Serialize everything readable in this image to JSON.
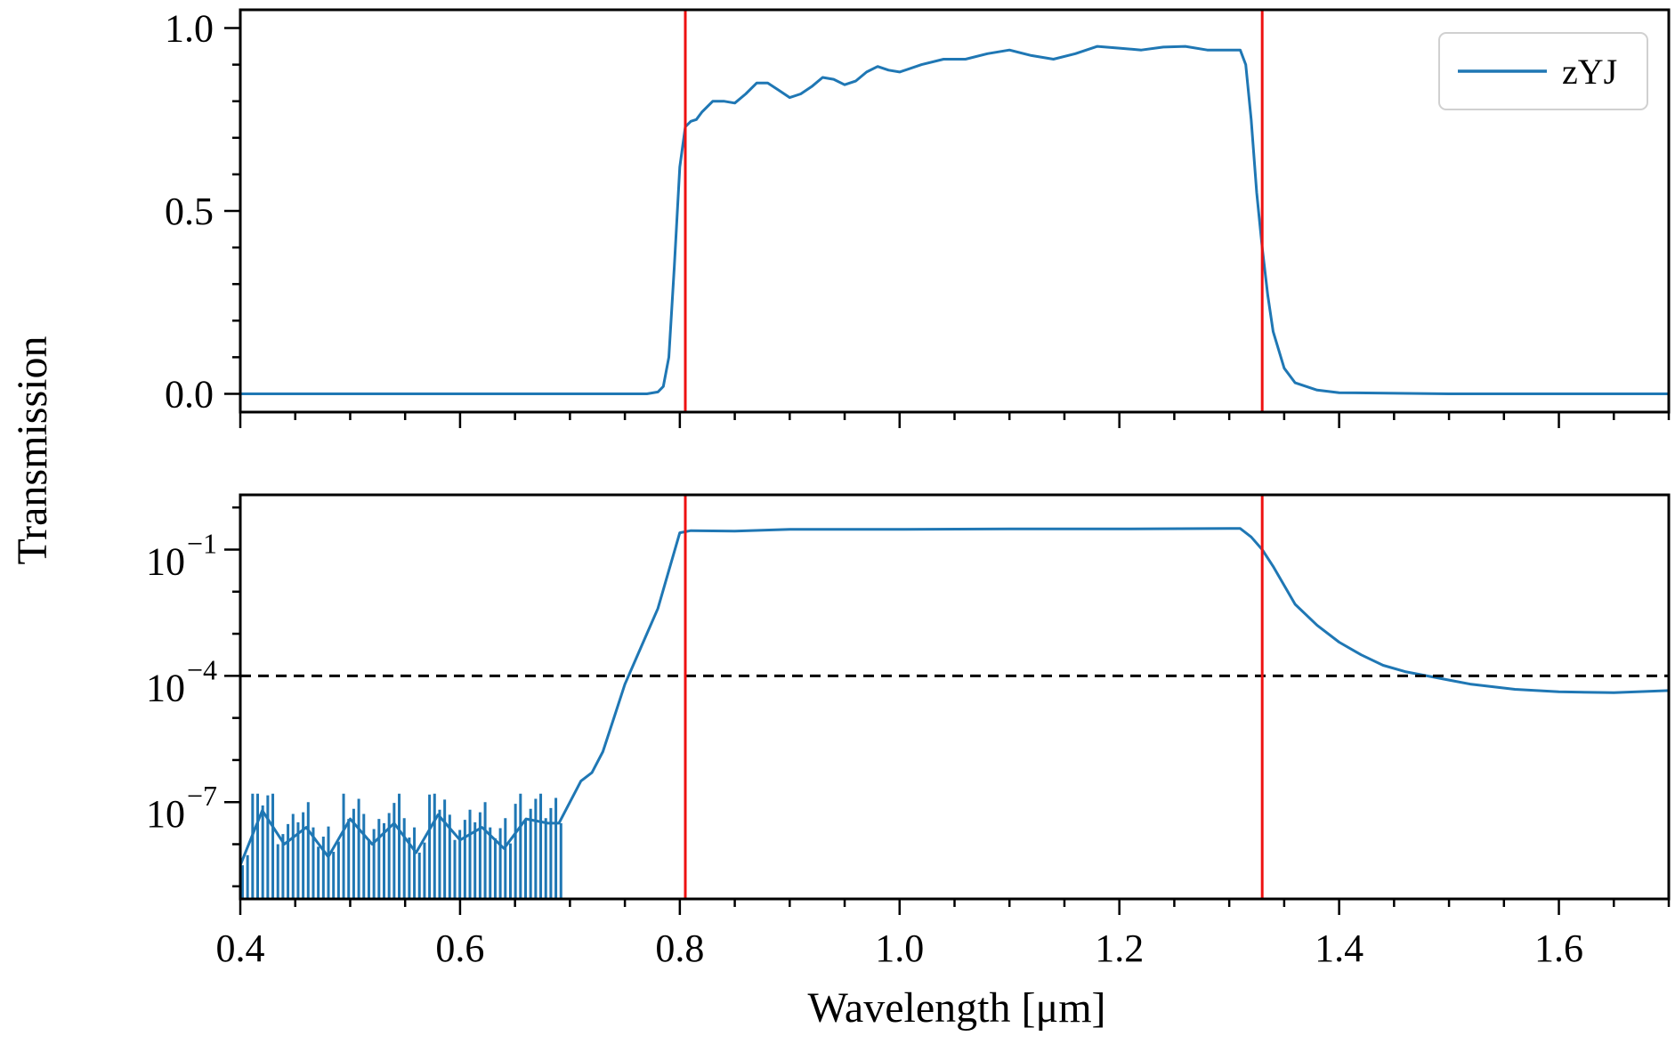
{
  "chart_data": {
    "type": "line",
    "ylabel": "Transmission",
    "xlabel": "Wavelength [μm]",
    "xlim": [
      0.4,
      1.7
    ],
    "xticks": [
      0.4,
      0.6,
      0.8,
      1.0,
      1.2,
      1.4,
      1.6
    ],
    "xtick_labels": [
      "0.4",
      "0.6",
      "0.8",
      "1.0",
      "1.2",
      "1.4",
      "1.6"
    ],
    "vertical_lines": [
      0.805,
      1.33
    ],
    "colors": {
      "series": "#1f77b4",
      "vlines": "#ee1111",
      "threshold": "#000000"
    },
    "legend": {
      "label": "zYJ",
      "location": "top-right"
    },
    "panels": [
      {
        "name": "linear",
        "yscale": "linear",
        "ylim": [
          -0.05,
          1.05
        ],
        "yticks": [
          0.0,
          0.5,
          1.0
        ],
        "ytick_labels": [
          "0.0",
          "0.5",
          "1.0"
        ],
        "series": [
          {
            "name": "zYJ",
            "x": [
              0.4,
              0.7,
              0.77,
              0.78,
              0.785,
              0.79,
              0.795,
              0.8,
              0.805,
              0.81,
              0.815,
              0.82,
              0.83,
              0.84,
              0.85,
              0.86,
              0.87,
              0.88,
              0.89,
              0.9,
              0.91,
              0.92,
              0.93,
              0.94,
              0.95,
              0.96,
              0.97,
              0.98,
              0.99,
              1.0,
              1.02,
              1.04,
              1.06,
              1.08,
              1.1,
              1.12,
              1.14,
              1.16,
              1.18,
              1.2,
              1.22,
              1.24,
              1.26,
              1.28,
              1.3,
              1.31,
              1.315,
              1.32,
              1.325,
              1.33,
              1.335,
              1.34,
              1.35,
              1.36,
              1.38,
              1.4,
              1.5,
              1.7
            ],
            "y": [
              0.0,
              0.0,
              0.0,
              0.005,
              0.02,
              0.1,
              0.35,
              0.62,
              0.73,
              0.745,
              0.75,
              0.77,
              0.8,
              0.8,
              0.795,
              0.82,
              0.85,
              0.85,
              0.83,
              0.81,
              0.82,
              0.84,
              0.865,
              0.86,
              0.845,
              0.855,
              0.88,
              0.895,
              0.885,
              0.88,
              0.9,
              0.915,
              0.915,
              0.93,
              0.94,
              0.925,
              0.915,
              0.93,
              0.95,
              0.945,
              0.94,
              0.948,
              0.95,
              0.94,
              0.94,
              0.94,
              0.9,
              0.75,
              0.55,
              0.4,
              0.27,
              0.17,
              0.07,
              0.03,
              0.01,
              0.003,
              0.0,
              0.0
            ]
          }
        ]
      },
      {
        "name": "log",
        "yscale": "log",
        "ylim_exp": [
          -9.3,
          0.3
        ],
        "yticks_exp": [
          -1,
          -4,
          -7
        ],
        "ytick_labels": [
          {
            "base": "10",
            "exp": "−1"
          },
          {
            "base": "10",
            "exp": "−4"
          },
          {
            "base": "10",
            "exp": "−7"
          }
        ],
        "threshold": 0.0001,
        "series": [
          {
            "name": "zYJ",
            "x": [
              0.4,
              0.42,
              0.44,
              0.46,
              0.48,
              0.5,
              0.52,
              0.54,
              0.56,
              0.58,
              0.6,
              0.62,
              0.64,
              0.66,
              0.68,
              0.69,
              0.7,
              0.71,
              0.72,
              0.73,
              0.74,
              0.75,
              0.76,
              0.77,
              0.78,
              0.79,
              0.8,
              0.81,
              0.85,
              0.9,
              1.0,
              1.1,
              1.2,
              1.3,
              1.31,
              1.32,
              1.33,
              1.34,
              1.36,
              1.38,
              1.4,
              1.42,
              1.44,
              1.46,
              1.48,
              1.5,
              1.52,
              1.56,
              1.6,
              1.65,
              1.7
            ],
            "log10_y": [
              -8.5,
              -7.2,
              -8.0,
              -7.6,
              -8.3,
              -7.4,
              -8.0,
              -7.5,
              -8.2,
              -7.3,
              -7.9,
              -7.6,
              -8.1,
              -7.4,
              -7.5,
              -7.5,
              -7.0,
              -6.5,
              -6.3,
              -5.8,
              -5.0,
              -4.2,
              -3.6,
              -3.0,
              -2.4,
              -1.5,
              -0.6,
              -0.55,
              -0.56,
              -0.52,
              -0.52,
              -0.51,
              -0.51,
              -0.5,
              -0.5,
              -0.7,
              -1.0,
              -1.4,
              -2.3,
              -2.8,
              -3.2,
              -3.5,
              -3.75,
              -3.9,
              -4.0,
              -4.1,
              -4.2,
              -4.32,
              -4.38,
              -4.4,
              -4.35
            ]
          }
        ]
      }
    ]
  }
}
